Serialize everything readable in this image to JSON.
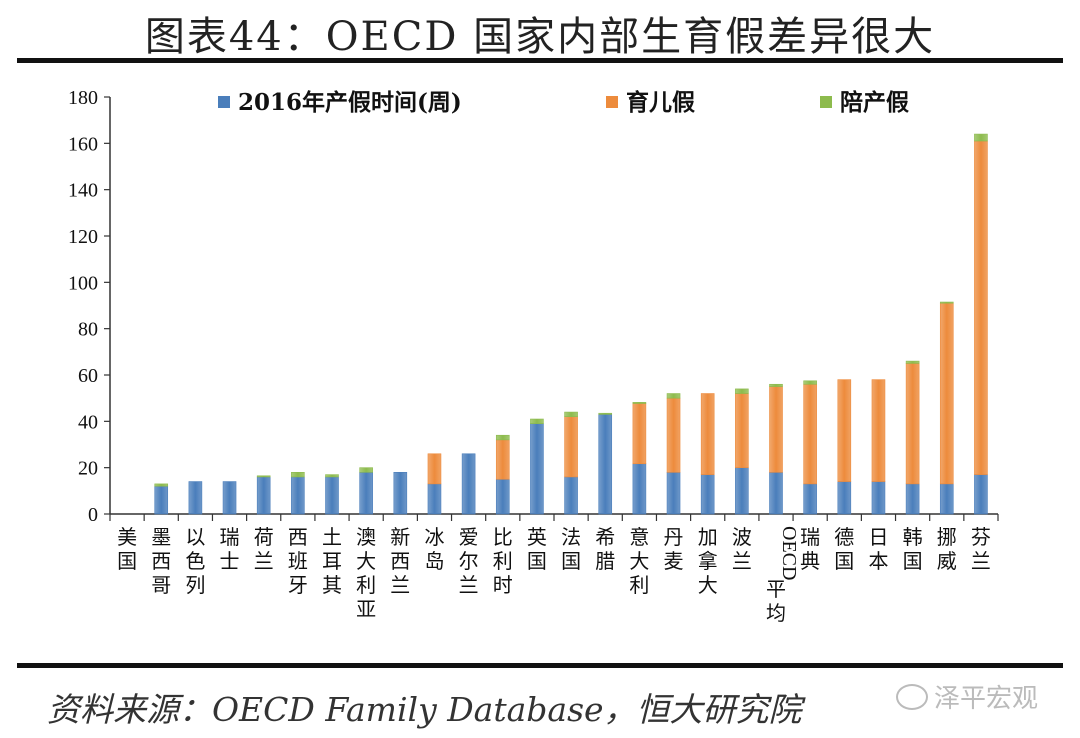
{
  "title": "图表44：OECD 国家内部生育假差异很大",
  "source": "资料来源：OECD Family Database，恒大研究院",
  "watermark": "泽平宏观",
  "colors": {
    "maternity": "#4A7EBB",
    "parental": "#ED8B3C",
    "paternity": "#8DBB4D"
  },
  "chart_data": {
    "type": "bar",
    "stacked": true,
    "title": "图表44：OECD 国家内部生育假差异很大",
    "xlabel": "",
    "ylabel": "",
    "ylim": [
      0,
      180
    ],
    "yticks": [
      0,
      20,
      40,
      60,
      80,
      100,
      120,
      140,
      160,
      180
    ],
    "legend_position": "top",
    "categories": [
      "美国",
      "墨西哥",
      "以色列",
      "瑞士",
      "荷兰",
      "西班牙",
      "土耳其",
      "澳大利亚",
      "新西兰",
      "冰岛",
      "爱尔兰",
      "比利时",
      "英国",
      "法国",
      "希腊",
      "意大利",
      "丹麦",
      "加拿大",
      "波兰",
      "OECD平均",
      "瑞典",
      "德国",
      "日本",
      "韩国",
      "挪威",
      "芬兰"
    ],
    "series": [
      {
        "name": "2016年产假时间(周)",
        "color": "#4A7EBB",
        "values": [
          0,
          12,
          14,
          14,
          16,
          16,
          16,
          18,
          18,
          13,
          26,
          15,
          39,
          16,
          43,
          21.7,
          18,
          17,
          20,
          18,
          13,
          14,
          14,
          13,
          13,
          17
        ]
      },
      {
        "name": "育儿假",
        "color": "#ED8B3C",
        "values": [
          0,
          0,
          0,
          0,
          0,
          0,
          0,
          0,
          0,
          13,
          0,
          17,
          0,
          26,
          0,
          26,
          32,
          35,
          32,
          37,
          43,
          44,
          44,
          52,
          78,
          144
        ]
      },
      {
        "name": "陪产假",
        "color": "#8DBB4D",
        "values": [
          0,
          1,
          0,
          0,
          0.5,
          2,
          1,
          2,
          0,
          0,
          0,
          2,
          2,
          2,
          0.5,
          0.5,
          2,
          0,
          2,
          1,
          1.5,
          0,
          0,
          1,
          0.5,
          3
        ]
      }
    ]
  }
}
